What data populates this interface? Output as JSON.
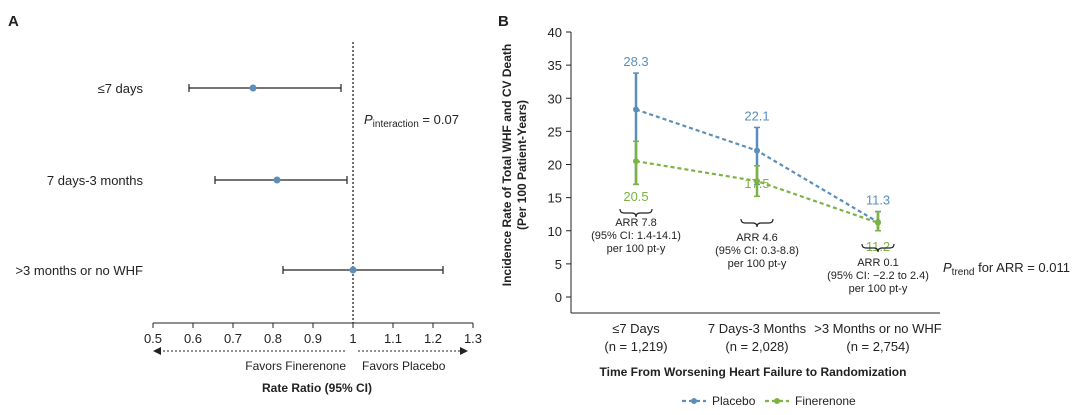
{
  "colors": {
    "placebo": "#5b8fba",
    "finerenone": "#7cb342",
    "axis": "#222222"
  },
  "chart_data": [
    {
      "panel": "A",
      "type": "forest",
      "categories": [
        "≤7 days",
        "7 days-3 months",
        ">3 months or no WHF"
      ],
      "estimates": [
        0.75,
        0.81,
        1.0
      ],
      "ci_low": [
        0.59,
        0.655,
        0.825
      ],
      "ci_high": [
        0.97,
        0.985,
        1.225
      ],
      "xlim": [
        0.5,
        1.3
      ],
      "xticks": [
        "0.5",
        "0.6",
        "0.7",
        "0.8",
        "0.9",
        "1",
        "1.1",
        "1.2",
        "1.3"
      ],
      "reference_line": 1,
      "p_interaction": {
        "label_main": "P",
        "label_sub": "interaction",
        "value": " = 0.07"
      },
      "favors_left": "Favors Finerenone",
      "favors_right": "Favors Placebo",
      "xlabel": "Rate Ratio (95% CI)"
    },
    {
      "panel": "B",
      "type": "line",
      "categories": [
        {
          "name": "≤7 Days",
          "n": "(n = 1,219)"
        },
        {
          "name": "7 Days-3 Months",
          "n": "(n = 2,028)"
        },
        {
          "name": ">3 Months or no WHF",
          "n": "(n = 2,754)"
        }
      ],
      "series": [
        {
          "name": "Placebo",
          "values": [
            28.3,
            22.1,
            11.3
          ],
          "ci_low": [
            17.0,
            17.0,
            10.0
          ],
          "ci_high": [
            33.8,
            25.6,
            12.9
          ],
          "labels": [
            "28.3",
            "22.1",
            "11.3"
          ]
        },
        {
          "name": "Finerenone",
          "values": [
            20.5,
            17.5,
            11.2
          ],
          "ci_low": [
            17.0,
            15.2,
            10.0
          ],
          "ci_high": [
            23.5,
            19.8,
            12.9
          ],
          "labels": [
            "20.5",
            "17.5",
            "11.2"
          ]
        }
      ],
      "ylim": [
        0,
        40
      ],
      "yticks": [
        "0",
        "5",
        "10",
        "15",
        "20",
        "25",
        "30",
        "35",
        "40"
      ],
      "ylabel_line1": "Incidence Rate of Total WHF and CV Death",
      "ylabel_line2": "(Per 100 Patient-Years)",
      "xlabel": "Time From Worsening Heart Failure to Randomization",
      "arr_notes": [
        [
          "ARR 7.8",
          "(95% CI: 1.4-14.1)",
          "per 100 pt-y"
        ],
        [
          "ARR 4.6",
          "(95% CI: 0.3-8.8)",
          "per 100 pt-y"
        ],
        [
          "ARR 0.1",
          "(95% CI: −2.2 to 2.4)",
          "per 100 pt-y"
        ]
      ],
      "p_trend": {
        "label_main": "P",
        "label_sub": "trend",
        "value": " for ARR = 0.011"
      },
      "legend": [
        "Placebo",
        "Finerenone"
      ]
    }
  ]
}
